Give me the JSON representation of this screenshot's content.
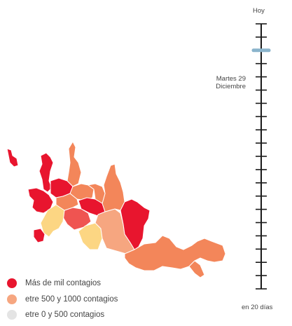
{
  "colors": {
    "high": "#e8152e",
    "medium": "#f3865a",
    "light_medium": "#f6a680",
    "low": "#fcd683",
    "red_mid": "#ef5451",
    "timeline": "#1a1a1a",
    "marker": "#8ab4cc",
    "legend_low_dot": "#e4e4e4"
  },
  "timeline": {
    "top_label": "Hoy",
    "bottom_label": "en 20 días",
    "marker_label_line1": "Martes 29",
    "marker_label_line2": "Diciembre",
    "tick_count": 20,
    "marker_index": 2
  },
  "legend": [
    {
      "label": "Más de mil contagios",
      "color": "#e8152e"
    },
    {
      "label": "etre 500 y 1000 contagios",
      "color": "#f6a680"
    },
    {
      "label": "etre 0 y 500 contagios",
      "color": "#e4e4e4"
    }
  ]
}
